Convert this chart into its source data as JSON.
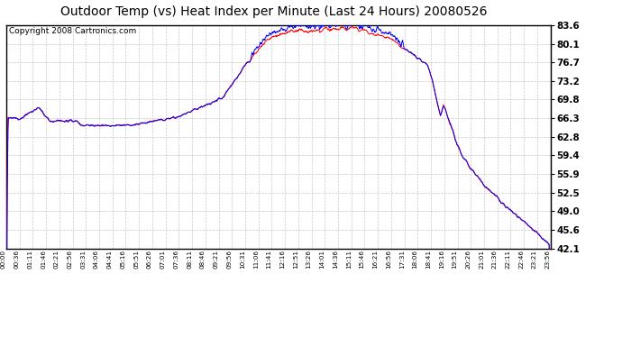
{
  "title": "Outdoor Temp (vs) Heat Index per Minute (Last 24 Hours) 20080526",
  "copyright": "Copyright 2008 Cartronics.com",
  "y_ticks": [
    42.1,
    45.6,
    49.0,
    52.5,
    55.9,
    59.4,
    62.8,
    66.3,
    69.8,
    73.2,
    76.7,
    80.1,
    83.6
  ],
  "y_min": 42.1,
  "y_max": 83.6,
  "line_color_red": "#FF0000",
  "line_color_blue": "#0000FF",
  "bg_color": "#FFFFFF",
  "plot_bg_color": "#FFFFFF",
  "grid_color": "#C8C8C8",
  "title_fontsize": 10,
  "copyright_fontsize": 6.5,
  "x_tick_labels": [
    "00:00",
    "00:36",
    "01:11",
    "01:46",
    "02:21",
    "02:56",
    "03:31",
    "04:06",
    "04:41",
    "05:16",
    "05:51",
    "06:26",
    "07:01",
    "07:36",
    "08:11",
    "08:46",
    "09:21",
    "09:56",
    "10:31",
    "11:06",
    "11:41",
    "12:16",
    "12:51",
    "13:26",
    "14:01",
    "14:36",
    "15:11",
    "15:46",
    "16:21",
    "16:56",
    "17:31",
    "18:06",
    "18:41",
    "19:16",
    "19:51",
    "20:26",
    "21:01",
    "21:36",
    "22:11",
    "22:46",
    "23:21",
    "23:56"
  ]
}
